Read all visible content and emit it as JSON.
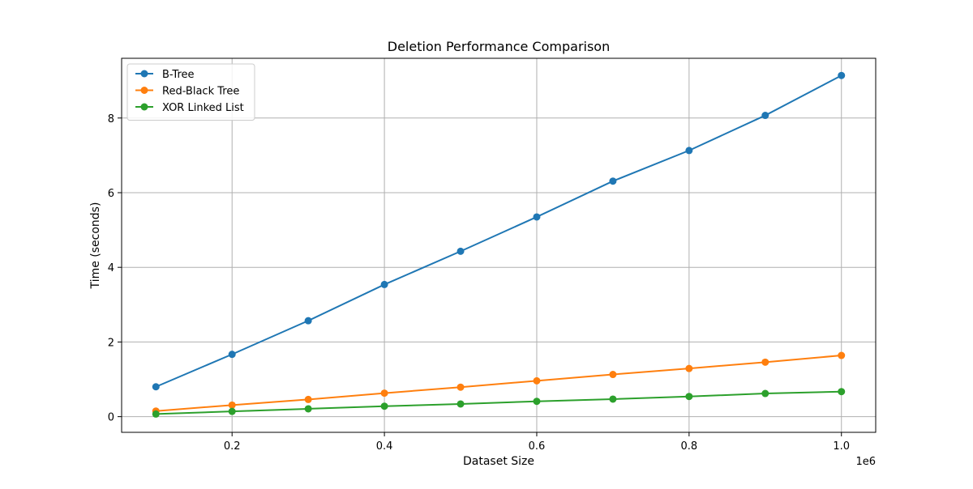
{
  "chart_data": {
    "type": "line",
    "title": "Deletion Performance Comparison",
    "xlabel": "Dataset Size",
    "ylabel": "Time (seconds)",
    "x_offset_label": "1e6",
    "x": [
      100000,
      200000,
      300000,
      400000,
      500000,
      600000,
      700000,
      800000,
      900000,
      1000000
    ],
    "x_tick_values": [
      0.2,
      0.4,
      0.6,
      0.8,
      1.0
    ],
    "x_tick_labels": [
      "0.2",
      "0.4",
      "0.6",
      "0.8",
      "1.0"
    ],
    "y_tick_values": [
      0,
      2,
      4,
      6,
      8
    ],
    "y_tick_labels": [
      "0",
      "2",
      "4",
      "6",
      "8"
    ],
    "xlim": [
      55000,
      1045000
    ],
    "ylim": [
      -0.42,
      9.6
    ],
    "grid": true,
    "legend_position": "top-left",
    "series": [
      {
        "name": "B-Tree",
        "color": "#1f77b4",
        "values": [
          0.8,
          1.67,
          2.57,
          3.54,
          4.43,
          5.35,
          6.31,
          7.13,
          8.07,
          9.14
        ]
      },
      {
        "name": "Red-Black Tree",
        "color": "#ff7f0e",
        "values": [
          0.15,
          0.31,
          0.46,
          0.63,
          0.79,
          0.96,
          1.13,
          1.29,
          1.46,
          1.64
        ]
      },
      {
        "name": "XOR Linked List",
        "color": "#2ca02c",
        "values": [
          0.07,
          0.14,
          0.21,
          0.28,
          0.34,
          0.41,
          0.47,
          0.54,
          0.62,
          0.67
        ]
      }
    ]
  }
}
